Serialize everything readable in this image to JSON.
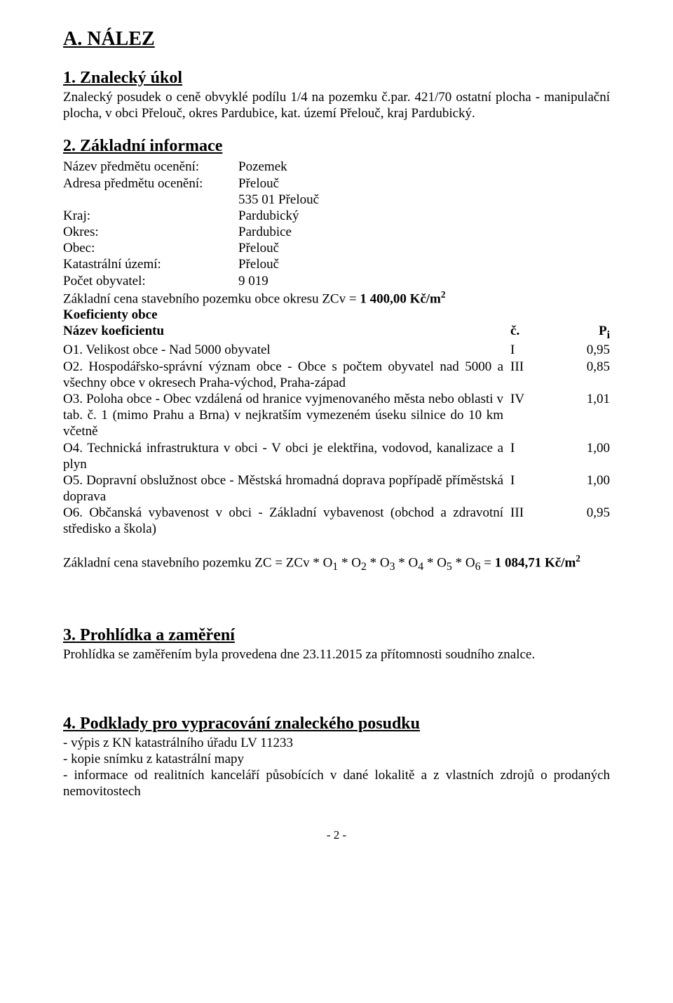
{
  "headings": {
    "main": "A. NÁLEZ",
    "s1": "1. Znalecký úkol",
    "s2": "2. Základní informace",
    "s3": "3. Prohlídka a zaměření",
    "s4": "4. Podklady pro vypracování znaleckého posudku"
  },
  "s1_text": "Znalecký posudek o ceně obvyklé podílu 1/4 na pozemku č.par. 421/70 ostatní plocha - manipulační plocha,  v obci Přelouč, okres Pardubice, kat. území Přelouč, kraj Pardubický.",
  "kv": {
    "k1": "Název předmětu ocenění:",
    "v1": "Pozemek",
    "k2": "Adresa předmětu ocenění:",
    "v2a": "Přelouč",
    "v2b": "535 01 Přelouč",
    "k3": "Kraj:",
    "v3": "Pardubický",
    "k4": "Okres:",
    "v4": "Pardubice",
    "k5": "Obec:",
    "v5": "Přelouč",
    "k6": "Katastrální území:",
    "v6": "Přelouč",
    "k7": "Počet obyvatel:",
    "v7": "9 019"
  },
  "zcv_line_a": "Základní cena stavebního pozemku obce okresu ZCv = ",
  "zcv_line_b": "1 400,00 Kč/m",
  "zcv_sup": "2",
  "koef_hdr": "Koeficienty obce",
  "coef_head": {
    "name": "Název koeficientu",
    "c": "č.",
    "p": "P"
  },
  "coef_sub": "i",
  "coef": {
    "o1": {
      "txt": "O1. Velikost obce - Nad 5000 obyvatel",
      "c": "I",
      "p": "0,95"
    },
    "o2": {
      "txt": "O2. Hospodářsko-správní význam obce - Obce s počtem obyvatel nad 5000 a všechny obce v okresech Praha-východ, Praha-západ",
      "c": "III",
      "p": "0,85"
    },
    "o3": {
      "txt": "O3. Poloha obce - Obec vzdálená od hranice vyjmenovaného města nebo oblasti v tab. č. 1 (mimo Prahu a Brna) v nejkratším vymezeném úseku silnice do 10 km včetně",
      "c": "IV",
      "p": "1,01"
    },
    "o4": {
      "txt": "O4. Technická infrastruktura v obci - V obci je elektřina, vodovod, kanalizace a plyn",
      "c": "I",
      "p": "1,00"
    },
    "o5": {
      "txt": "O5. Dopravní obslužnost obce - Městská hromadná doprava popřípadě příměstská doprava",
      "c": "I",
      "p": "1,00"
    },
    "o6": {
      "txt": "O6. Občanská vybavenost v obci - Základní vybavenost (obchod a zdravotní středisko a škola)",
      "c": "III",
      "p": "0,95"
    }
  },
  "formula_a": "Základní cena stavebního pozemku  ZC = ZCv * O",
  "formula_b": " * O",
  "formula_eq": " = ",
  "formula_val": "1 084,71 Kč/m",
  "s3_text": "Prohlídka se zaměřením byla provedena dne 23.11.2015 za přítomnosti soudního znalce.",
  "s4_l1": "- výpis z KN katastrálního úřadu LV 11233",
  "s4_l2": "- kopie snímku z katastrální mapy",
  "s4_l3": "- informace od realitních kanceláří působících v dané lokalitě a z vlastních zdrojů o prodaných nemovitostech",
  "footer": "- 2 -"
}
